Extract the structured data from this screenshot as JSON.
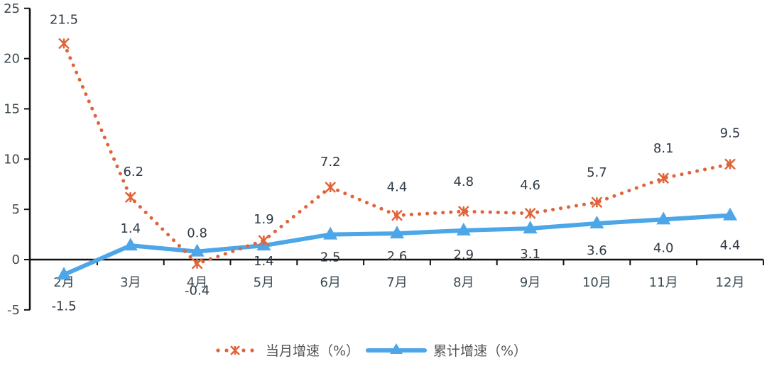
{
  "chart_data": {
    "type": "line",
    "title": "",
    "xlabel": "",
    "ylabel": "",
    "categories": [
      "2月",
      "3月",
      "4月",
      "5月",
      "6月",
      "7月",
      "8月",
      "9月",
      "10月",
      "11月",
      "12月"
    ],
    "series": [
      {
        "name": "当月增速（%）",
        "color": "#e0643a",
        "style": "dotted",
        "marker": "asterisk",
        "values": [
          21.5,
          6.2,
          -0.4,
          1.9,
          7.2,
          4.4,
          4.8,
          4.6,
          5.7,
          8.1,
          9.5
        ]
      },
      {
        "name": "累计增速（%）",
        "color": "#4da6e8",
        "style": "solid",
        "marker": "triangle",
        "values": [
          -1.5,
          1.4,
          0.8,
          1.4,
          2.5,
          2.6,
          2.9,
          3.1,
          3.6,
          4.0,
          4.4
        ]
      }
    ],
    "ylim": [
      -5,
      25
    ],
    "yticks": [
      -5,
      0,
      5,
      10,
      15,
      20,
      25
    ],
    "grid": false,
    "legend_position": "bottom"
  },
  "legend": {
    "items": [
      "当月增速（%）",
      "累计增速（%）"
    ]
  }
}
